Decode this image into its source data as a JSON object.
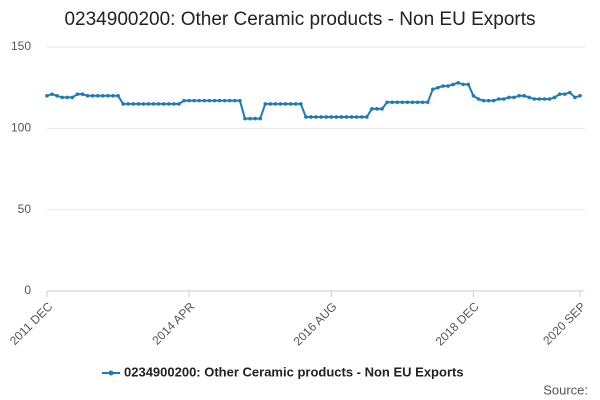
{
  "chart_data": {
    "type": "line",
    "title": "0234900200: Other Ceramic products - Non EU Exports",
    "categories": [
      "2011 DEC",
      null,
      null,
      null,
      null,
      null,
      null,
      null,
      null,
      null,
      null,
      null,
      null,
      null,
      null,
      null,
      null,
      null,
      null,
      null,
      null,
      null,
      null,
      null,
      null,
      null,
      null,
      null,
      "2014 APR",
      null,
      null,
      null,
      null,
      null,
      null,
      null,
      null,
      null,
      null,
      null,
      null,
      null,
      null,
      null,
      null,
      null,
      null,
      null,
      null,
      null,
      null,
      null,
      null,
      null,
      null,
      null,
      "2016 AUG",
      null,
      null,
      null,
      null,
      null,
      null,
      null,
      null,
      null,
      null,
      null,
      null,
      null,
      null,
      null,
      null,
      null,
      null,
      null,
      null,
      null,
      null,
      null,
      null,
      null,
      null,
      null,
      "2018 DEC",
      null,
      null,
      null,
      null,
      null,
      null,
      null,
      null,
      null,
      null,
      null,
      null,
      null,
      null,
      null,
      null,
      null,
      null,
      null,
      null,
      "2020 SEP"
    ],
    "series": [
      {
        "name": "0234900200: Other Ceramic products - Non EU Exports",
        "color": "#1f7ab8",
        "values": [
          120,
          121,
          120,
          119,
          119,
          119,
          121,
          121,
          120,
          120,
          120,
          120,
          120,
          120,
          120,
          115,
          115,
          115,
          115,
          115,
          115,
          115,
          115,
          115,
          115,
          115,
          115,
          117,
          117,
          117,
          117,
          117,
          117,
          117,
          117,
          117,
          117,
          117,
          117,
          106,
          106,
          106,
          106,
          115,
          115,
          115,
          115,
          115,
          115,
          115,
          115,
          107,
          107,
          107,
          107,
          107,
          107,
          107,
          107,
          107,
          107,
          107,
          107,
          107,
          112,
          112,
          112,
          116,
          116,
          116,
          116,
          116,
          116,
          116,
          116,
          116,
          124,
          125,
          126,
          126,
          127,
          128,
          127,
          127,
          120,
          118,
          117,
          117,
          117,
          118,
          118,
          119,
          119,
          120,
          120,
          119,
          118,
          118,
          118,
          118,
          119,
          121,
          121,
          122,
          119,
          120
        ]
      }
    ],
    "ylim": [
      0,
      150
    ],
    "yticks": [
      0,
      50,
      100,
      150
    ],
    "grid": true,
    "source": "Source:"
  }
}
